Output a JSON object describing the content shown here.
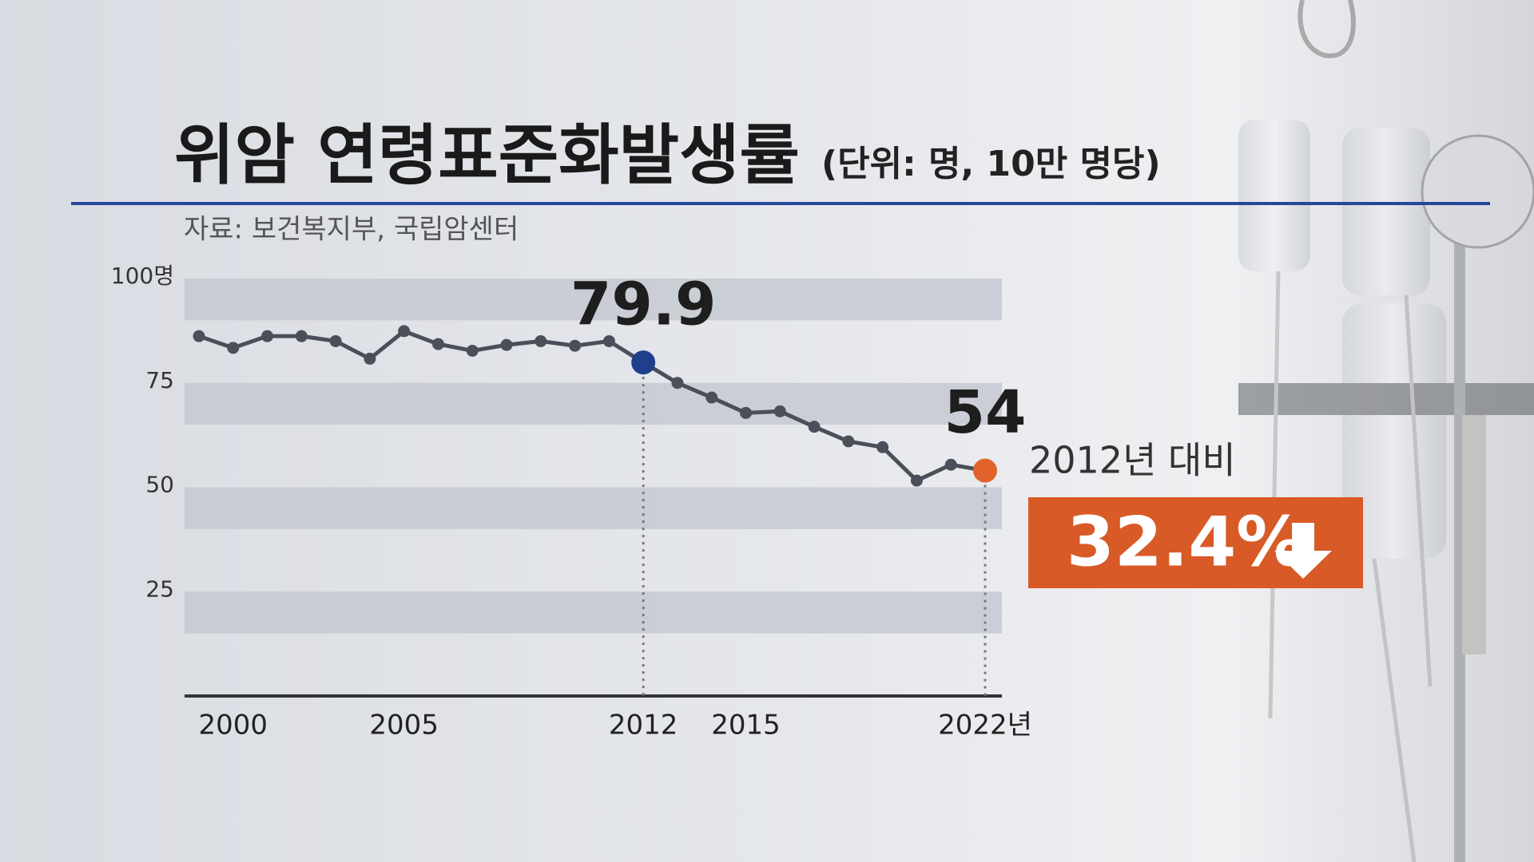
{
  "chart_data": {
    "type": "line",
    "title": "위암 연령표준화발생률",
    "subtitle": "(단위: 명, 10만 명당)",
    "source": "자료: 보건복지부, 국립암센터",
    "annotations": [
      "2012년 대비",
      "32.4%"
    ],
    "x": [
      1999,
      2000,
      2001,
      2002,
      2003,
      2004,
      2005,
      2006,
      2007,
      2008,
      2009,
      2010,
      2011,
      2012,
      2013,
      2014,
      2015,
      2016,
      2017,
      2018,
      2019,
      2020,
      2021,
      2022
    ],
    "series": [
      {
        "name": "위암 연령표준화발생률",
        "color": "#4a4f5a",
        "values": [
          86.2,
          83.4,
          86.2,
          86.2,
          85.0,
          80.8,
          87.4,
          84.3,
          82.7,
          84.1,
          85.0,
          83.9,
          85.0,
          79.9,
          75.0,
          71.5,
          67.8,
          68.2,
          64.5,
          61.0,
          59.6,
          51.6,
          55.4,
          54
        ],
        "marker_colors": [
          null,
          null,
          null,
          null,
          null,
          null,
          null,
          null,
          null,
          null,
          null,
          null,
          null,
          "#1f3f8c",
          null,
          null,
          null,
          null,
          null,
          null,
          null,
          null,
          null,
          "#e2622b"
        ]
      }
    ],
    "xlim": [
      1999,
      2022
    ],
    "xticks": [
      2000,
      2005,
      2012,
      2015,
      {
        "value": 2022,
        "label": "2022년"
      }
    ],
    "ylim": [
      0,
      100
    ],
    "yticks": [
      25,
      50,
      75,
      {
        "value": 100,
        "label": "100명"
      }
    ],
    "grid": true
  }
}
